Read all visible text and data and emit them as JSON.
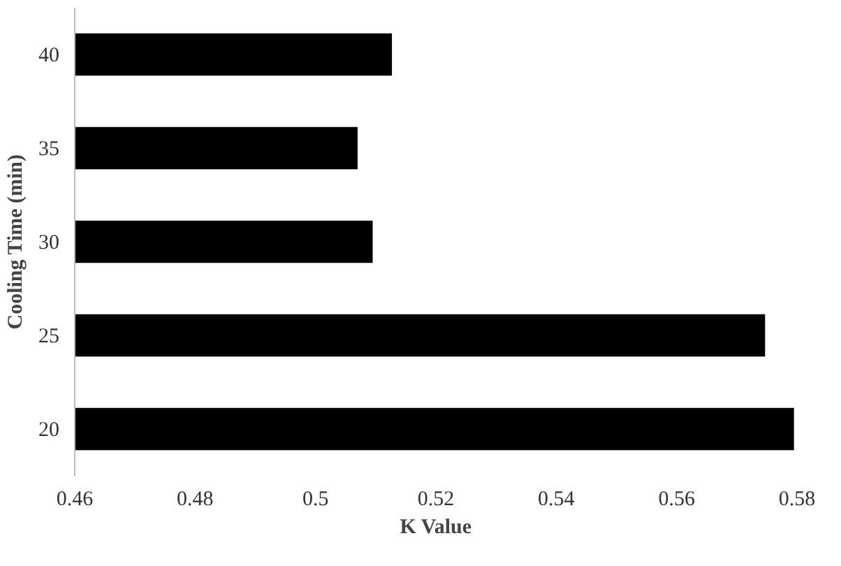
{
  "chart_data": {
    "type": "bar",
    "orientation": "horizontal",
    "xlabel": "K Value",
    "ylabel": "Cooling Time (min)",
    "categories": [
      "40",
      "35",
      "30",
      "25",
      "20"
    ],
    "values": [
      0.5127,
      0.507,
      0.5095,
      0.5747,
      0.5795
    ],
    "color": "#000000",
    "xlim": [
      0.46,
      0.58
    ],
    "xticks": [
      0.46,
      0.48,
      {
        "value": 0.5,
        "label": "0.5"
      },
      0.52,
      0.54,
      0.56,
      0.58
    ],
    "grid": false
  }
}
